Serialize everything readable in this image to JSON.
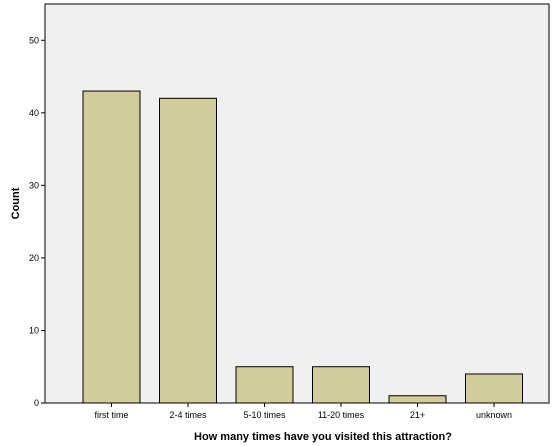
{
  "chart_data": {
    "type": "bar",
    "title": "",
    "xlabel": "How many times have you visited this attraction?",
    "ylabel": "Count",
    "categories": [
      "first time",
      "2-4 times",
      "5-10 times",
      "11-20 times",
      "21+",
      "unknown"
    ],
    "values": [
      43,
      42,
      5,
      5,
      1,
      4
    ],
    "ylim": [
      0,
      55
    ],
    "yticks": [
      0,
      10,
      20,
      30,
      40,
      50
    ],
    "grid": false,
    "bar_color": "#d2cc9c",
    "bar_edge_color": "#000000",
    "plot_background": "#f0f0f0"
  }
}
